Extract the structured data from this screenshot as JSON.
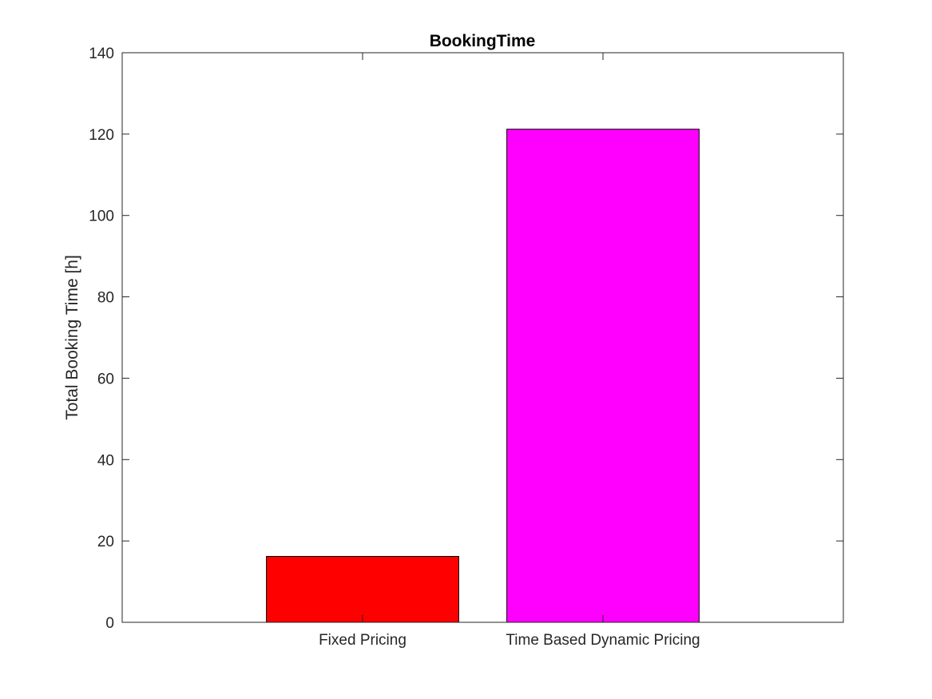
{
  "chart_data": {
    "type": "bar",
    "title": "BookingTime",
    "xlabel": "",
    "ylabel": "Total Booking Time [h]",
    "categories": [
      "Fixed Pricing",
      "Time Based Dynamic Pricing"
    ],
    "values": [
      16.2,
      121.2
    ],
    "bar_colors": [
      "#ff0000",
      "#ff00ff"
    ],
    "ylim": [
      0,
      140
    ],
    "yticks": [
      0,
      20,
      40,
      60,
      80,
      100,
      120,
      140
    ],
    "grid": false
  }
}
